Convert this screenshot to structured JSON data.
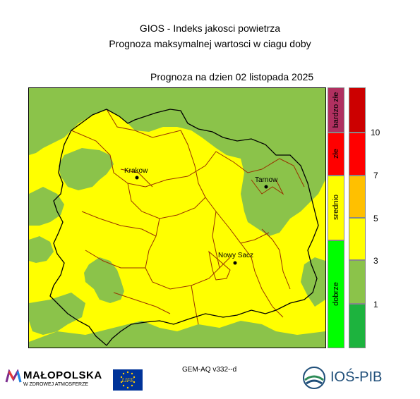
{
  "header": {
    "title": "GIOS - Indeks jakosci powietrza",
    "subtitle": "Prognoza maksymalnej wartosci w ciagu doby",
    "date_label": "Prognoza na dzien  02 listopada 2025"
  },
  "map": {
    "colors": {
      "good_low": "#8BC34A",
      "moderate": "#FFFF00",
      "border_black": "#000000",
      "border_red": "#993300"
    },
    "cities": [
      {
        "name": "Krakow"
      },
      {
        "name": "Tarnow"
      },
      {
        "name": "Nowy Sacz"
      }
    ]
  },
  "legend": {
    "categories": [
      {
        "label": "bardzo złe",
        "color": "#B03060"
      },
      {
        "label": "złe",
        "color": "#FF0000"
      },
      {
        "label": "srednio",
        "color": "#FFFF00"
      },
      {
        "label": "dobrze",
        "color": "#00FF00"
      }
    ],
    "levels": [
      {
        "color": "#CC0000"
      },
      {
        "color": "#FF0000"
      },
      {
        "color": "#FFC000"
      },
      {
        "color": "#FFFF00"
      },
      {
        "color": "#8BC34A"
      },
      {
        "color": "#1DB33E"
      }
    ],
    "ticks": [
      "10",
      "7",
      "5",
      "3",
      "1"
    ]
  },
  "footer": {
    "model": "GEM-AQ v332--d",
    "malopolska_name": "MAŁOPOLSKA",
    "malopolska_tagline": "W ZDROWEJ ATMOSFERZE",
    "eu_text": "LIFE",
    "ios_name": "IOŚ-PIB"
  }
}
